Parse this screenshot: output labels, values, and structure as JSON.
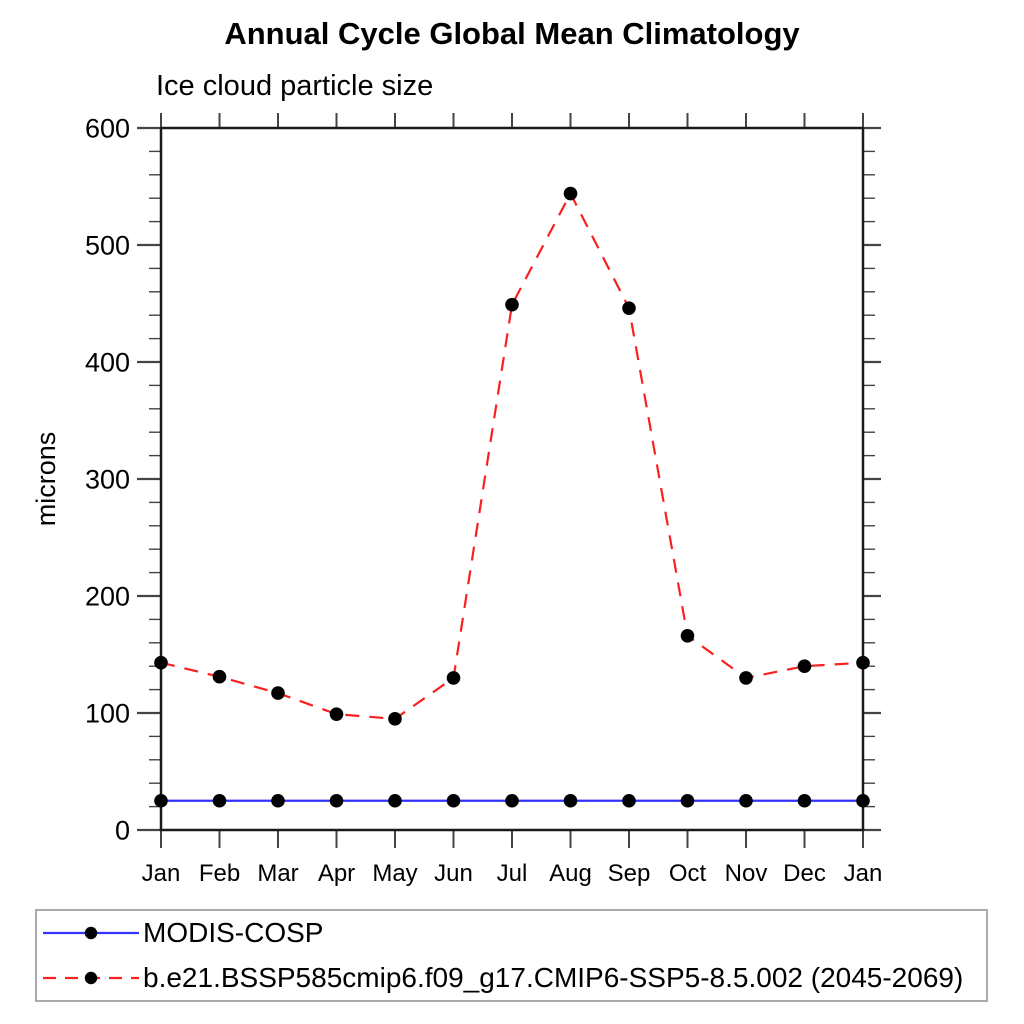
{
  "page": {
    "title": "Annual Cycle Global Mean Climatology",
    "subtitle": "Ice cloud particle size"
  },
  "chart_data": {
    "type": "line",
    "title": "Annual Cycle Global Mean Climatology",
    "subtitle": "Ice cloud particle size",
    "xlabel": "",
    "ylabel": "microns",
    "categories": [
      "Jan",
      "Feb",
      "Mar",
      "Apr",
      "May",
      "Jun",
      "Jul",
      "Aug",
      "Sep",
      "Oct",
      "Nov",
      "Dec",
      "Jan"
    ],
    "ylim": [
      0,
      600
    ],
    "yticks_major": [
      0,
      100,
      200,
      300,
      400,
      500,
      600
    ],
    "ytick_minor_step": 20,
    "grid": false,
    "legend_position": "bottom-left-boxed",
    "series": [
      {
        "name": "MODIS-COSP",
        "line_style": "solid",
        "line_color": "#3333ff",
        "marker": "filled-circle",
        "marker_color": "#000000",
        "values": [
          25,
          25,
          25,
          25,
          25,
          25,
          25,
          25,
          25,
          25,
          25,
          25,
          25
        ]
      },
      {
        "name": "b.e21.BSSP585cmip6.f09_g17.CMIP6-SSP5-8.5.002 (2045-2069)",
        "line_style": "dashed",
        "line_color": "#fb2020",
        "marker": "filled-circle",
        "marker_color": "#000000",
        "values": [
          143,
          131,
          117,
          99,
          95,
          130,
          449,
          544,
          446,
          166,
          130,
          140,
          143
        ]
      }
    ]
  },
  "colors": {
    "frame": "#1a1a1a",
    "tick": "#444444",
    "text": "#000000",
    "legend_border": "#aaaaaa",
    "background": "#ffffff"
  }
}
